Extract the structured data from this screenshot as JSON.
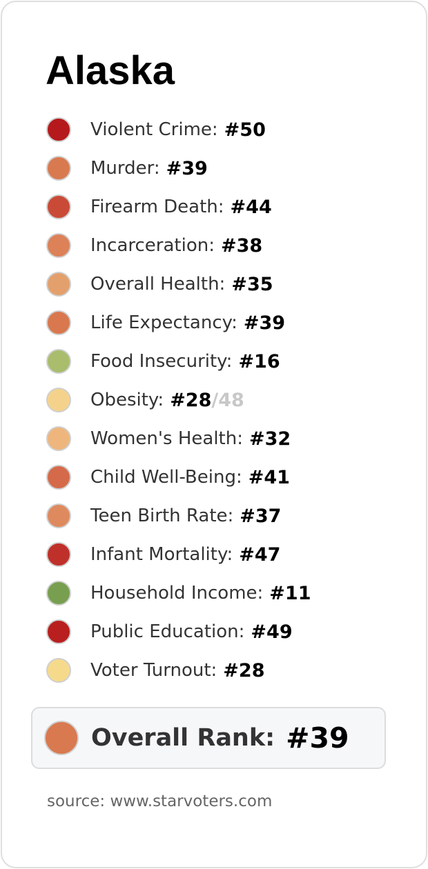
{
  "title": "Alaska",
  "items": [
    {
      "label": "Violent Crime:",
      "rank": "#50",
      "color": "#b5191c"
    },
    {
      "label": "Murder:",
      "rank": "#39",
      "color": "#d9794f"
    },
    {
      "label": "Firearm Death:",
      "rank": "#44",
      "color": "#c94b37"
    },
    {
      "label": "Incarceration:",
      "rank": "#38",
      "color": "#dc8158"
    },
    {
      "label": "Overall Health:",
      "rank": "#35",
      "color": "#e3a06c"
    },
    {
      "label": "Life Expectancy:",
      "rank": "#39",
      "color": "#d9784f"
    },
    {
      "label": "Food Insecurity:",
      "rank": "#16",
      "color": "#a9bd6c"
    },
    {
      "label": "Obesity:",
      "rank": "#28",
      "of": "/48",
      "color": "#f5d28b"
    },
    {
      "label": "Women's Health:",
      "rank": "#32",
      "color": "#eeb67c"
    },
    {
      "label": "Child Well-Being:",
      "rank": "#41",
      "color": "#d56a4a"
    },
    {
      "label": "Teen Birth Rate:",
      "rank": "#37",
      "color": "#de8a5e"
    },
    {
      "label": "Infant Mortality:",
      "rank": "#47",
      "color": "#c0302a"
    },
    {
      "label": "Household Income:",
      "rank": "#11",
      "color": "#789f50"
    },
    {
      "label": "Public Education:",
      "rank": "#49",
      "color": "#b91f1f"
    },
    {
      "label": "Voter Turnout:",
      "rank": "#28",
      "color": "#f6da8c"
    }
  ],
  "overall": {
    "label": "Overall Rank:",
    "rank": "#39",
    "color": "#d9794f"
  },
  "source": "source: www.starvoters.com"
}
